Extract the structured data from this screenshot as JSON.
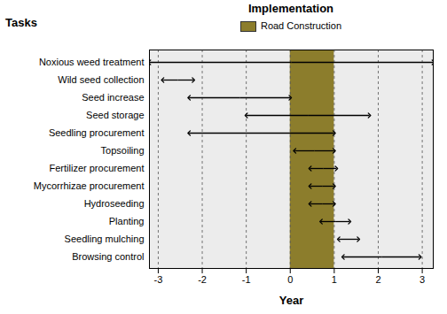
{
  "chart_data": {
    "type": "gantt",
    "title": "Implementation",
    "y_label": "Tasks",
    "x_label": "Year",
    "categories": [
      "Noxious weed treatment",
      "Wild seed collection",
      "Seed increase",
      "Seed storage",
      "Seedling procurement",
      "Topsoiling",
      "Fertilizer procurement",
      "Mycorrhizae procurement",
      "Hydroseeding",
      "Planting",
      "Seedling mulching",
      "Browsing control"
    ],
    "start": [
      -3.2,
      -2.9,
      -2.3,
      -1.0,
      -2.3,
      0.1,
      0.45,
      0.45,
      0.45,
      0.7,
      1.1,
      1.2
    ],
    "end": [
      3.25,
      -2.2,
      0.0,
      1.8,
      1.0,
      1.0,
      1.05,
      1.0,
      1.0,
      1.35,
      1.55,
      2.95
    ],
    "color": "#000000",
    "bands": [
      {
        "name": "Road Construction",
        "start": 0,
        "end": 1,
        "color": "#8c7d2c"
      }
    ],
    "xlim": [
      -3.2,
      3.25
    ],
    "xticks": [
      -3,
      -2,
      -1,
      0,
      1,
      2,
      3
    ],
    "grid": true,
    "legend": "top"
  }
}
